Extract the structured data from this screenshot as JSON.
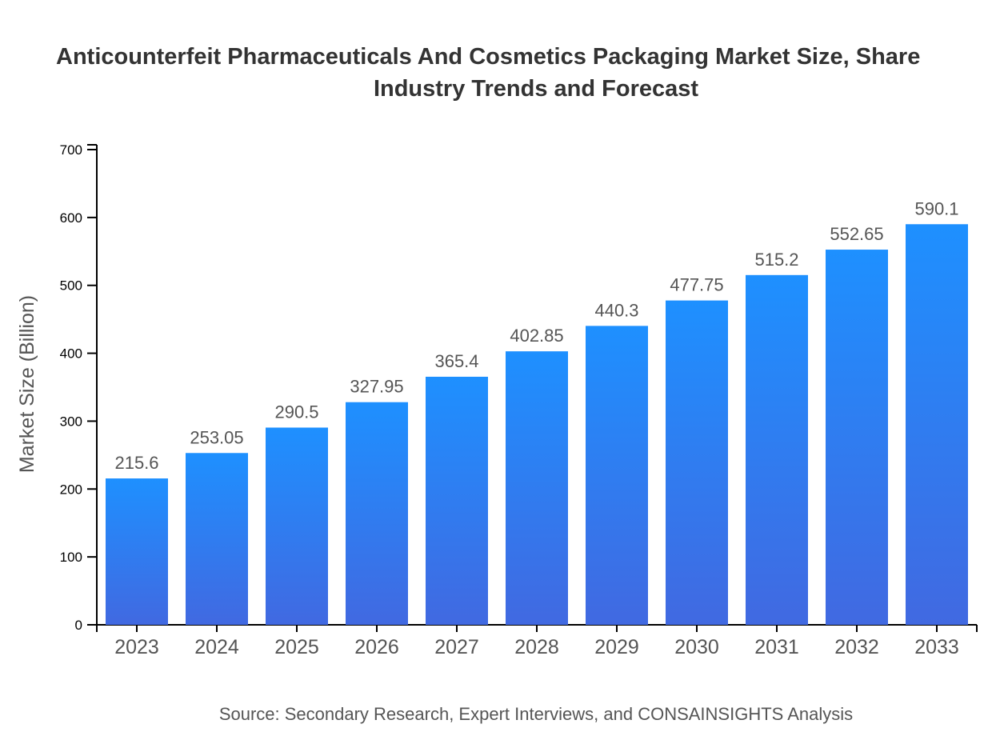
{
  "chart_data": {
    "type": "bar",
    "title_lines": [
      "Anticounterfeit Pharmaceuticals And Cosmetics Packaging Market Size, Share",
      "Industry Trends and Forecast"
    ],
    "xlabel": "",
    "ylabel": "Market Size (Billion)",
    "categories": [
      "2023",
      "2024",
      "2025",
      "2026",
      "2027",
      "2028",
      "2029",
      "2030",
      "2031",
      "2032",
      "2033"
    ],
    "values": [
      215.6,
      253.05,
      290.5,
      327.95,
      365.4,
      402.85,
      440.3,
      477.75,
      515.2,
      552.65,
      590.1
    ],
    "value_labels": [
      "215.6",
      "253.05",
      "290.5",
      "327.95",
      "365.4",
      "402.85",
      "440.3",
      "477.75",
      "515.2",
      "552.65",
      "590.1"
    ],
    "ylim": [
      0,
      700
    ],
    "yticks": [
      "0",
      "100",
      "200",
      "300",
      "400",
      "500",
      "600",
      "700"
    ],
    "grid": false,
    "bar_gradient": {
      "top": "#1e90ff",
      "bottom": "#4169e1"
    },
    "source": "Source: Secondary Research, Expert Interviews, and CONSAINSIGHTS Analysis"
  }
}
